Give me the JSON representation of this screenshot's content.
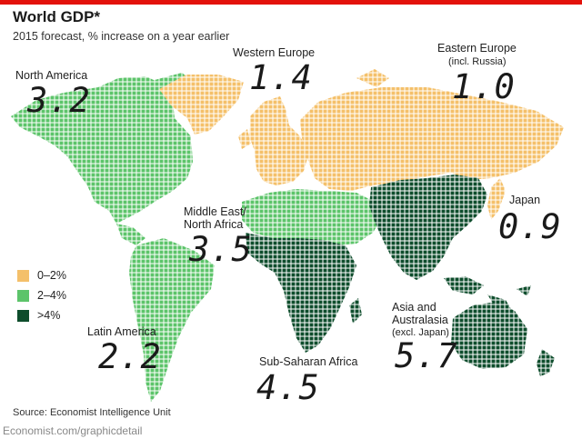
{
  "header": {
    "title": "World GDP*",
    "subtitle": "2015 forecast, % increase on a year earlier"
  },
  "colors": {
    "accent_bar": "#e3120b",
    "band_low": "#f4c06a",
    "band_mid": "#5cc46a",
    "band_high": "#0e4d2c"
  },
  "regions": [
    {
      "id": "north-america",
      "name": "North America",
      "value": "3.2",
      "band": "mid"
    },
    {
      "id": "western-europe",
      "name": "Western Europe",
      "value": "1.4",
      "band": "low"
    },
    {
      "id": "eastern-europe",
      "name": "Eastern Europe",
      "note": "(incl. Russia)",
      "value": "1.0",
      "band": "low"
    },
    {
      "id": "japan",
      "name": "Japan",
      "value": "0.9",
      "band": "low"
    },
    {
      "id": "middle-east",
      "name_lines": [
        "Middle East/",
        "North Africa"
      ],
      "value": "3.5",
      "band": "mid"
    },
    {
      "id": "latin-america",
      "name": "Latin America",
      "value": "2.2",
      "band": "mid"
    },
    {
      "id": "sub-saharan-africa",
      "name": "Sub-Saharan Africa",
      "value": "4.5",
      "band": "high"
    },
    {
      "id": "asia-australasia",
      "name_lines": [
        "Asia and",
        "Australasia"
      ],
      "note": "(excl. Japan)",
      "value": "5.7",
      "band": "high"
    }
  ],
  "legend": [
    {
      "label": "0–2%",
      "band": "low"
    },
    {
      "label": "2–4%",
      "band": "mid"
    },
    {
      "label": ">4%",
      "band": "high"
    }
  ],
  "footer": {
    "source": "Source: Economist Intelligence Unit",
    "credit": "Economist.com/graphicdetail"
  }
}
